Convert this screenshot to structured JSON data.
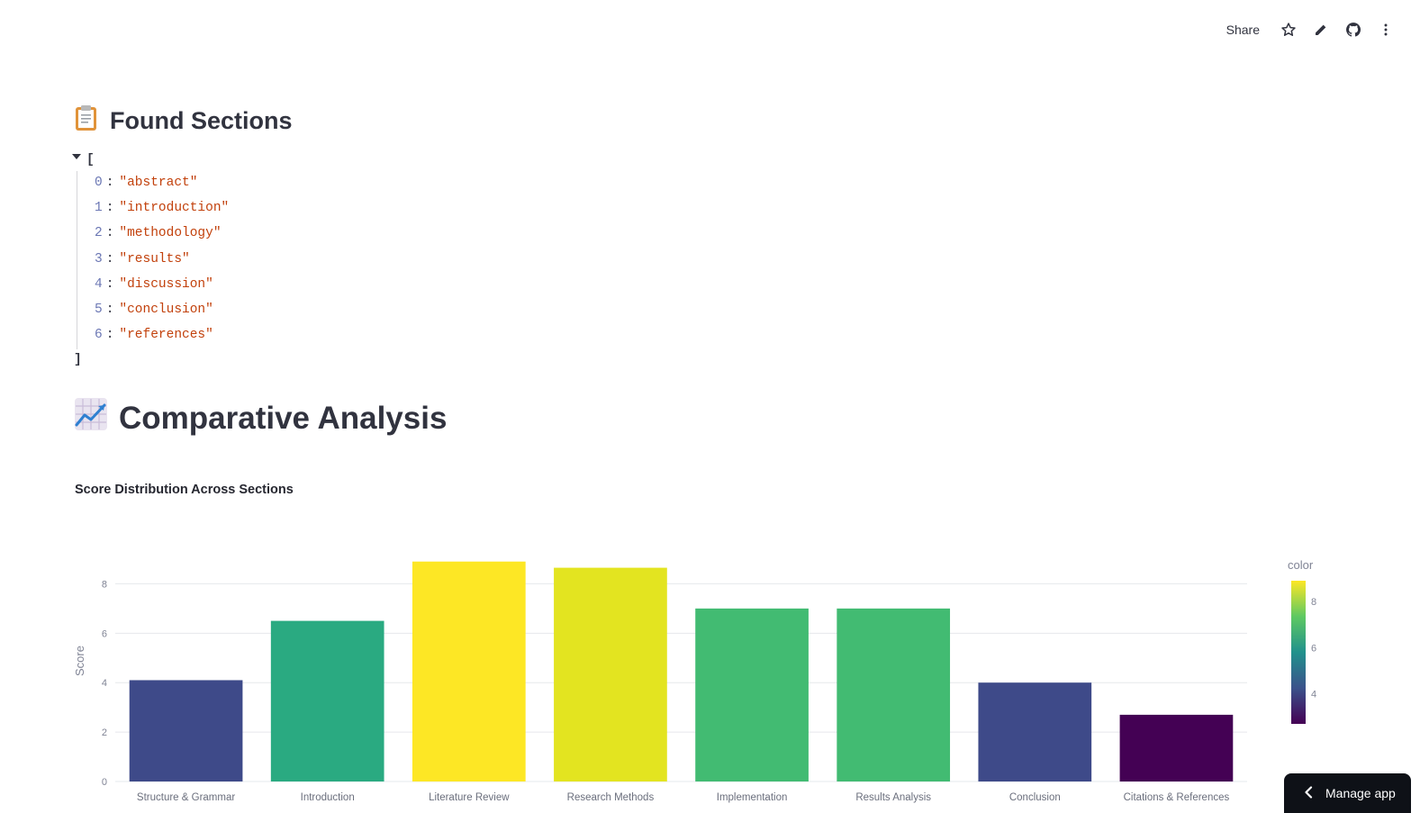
{
  "toolbar": {
    "share_label": "Share",
    "icons": [
      "star-icon",
      "pencil-icon",
      "github-icon",
      "more-vertical-icon"
    ]
  },
  "found_sections": {
    "emoji": "📋",
    "title": "Found Sections",
    "open_bracket": "[",
    "close_bracket": "]",
    "items": [
      {
        "index": "0",
        "value": "\"abstract\""
      },
      {
        "index": "1",
        "value": "\"introduction\""
      },
      {
        "index": "2",
        "value": "\"methodology\""
      },
      {
        "index": "3",
        "value": "\"results\""
      },
      {
        "index": "4",
        "value": "\"discussion\""
      },
      {
        "index": "5",
        "value": "\"conclusion\""
      },
      {
        "index": "6",
        "value": "\"references\""
      }
    ]
  },
  "comparative": {
    "emoji": "📈",
    "title": "Comparative Analysis"
  },
  "chart_data": {
    "type": "bar",
    "title": "Score Distribution Across Sections",
    "xlabel": "",
    "ylabel": "Score",
    "categories": [
      "Structure & Grammar",
      "Introduction",
      "Literature Review",
      "Research Methods",
      "Implementation",
      "Results Analysis",
      "Conclusion",
      "Citations & References"
    ],
    "values": [
      4.1,
      6.5,
      8.9,
      8.65,
      7.0,
      7.0,
      4.0,
      2.7
    ],
    "ylim": [
      0,
      9.4
    ],
    "yticks": [
      0,
      2,
      4,
      6,
      8
    ],
    "grid": true,
    "colors": [
      "#3e4a89",
      "#2aaa81",
      "#fde725",
      "#e3e420",
      "#42bb72",
      "#42bb72",
      "#3e4a89",
      "#440154"
    ],
    "colorbar": {
      "title": "color",
      "range": [
        2.7,
        8.9
      ],
      "ticks": [
        4,
        6,
        8
      ],
      "colorscale": [
        "#440154",
        "#3b528b",
        "#21918c",
        "#5ec962",
        "#fde725"
      ]
    }
  },
  "manage_app": {
    "label": "Manage app"
  }
}
